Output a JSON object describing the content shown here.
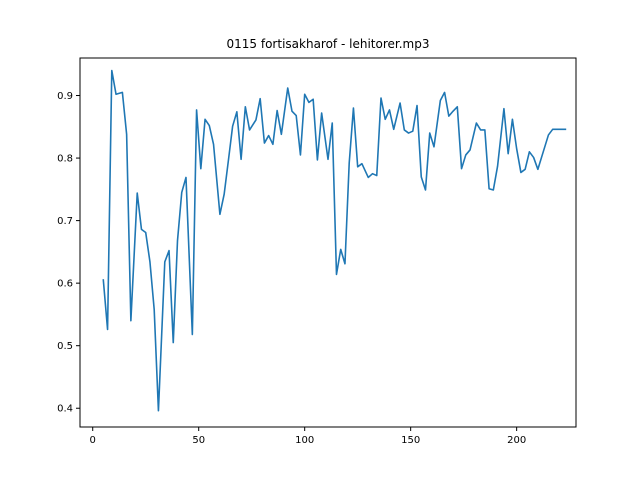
{
  "chart_data": {
    "type": "line",
    "title": "0115 fortisakharof - lehitorer.mp3",
    "xlabel": "",
    "ylabel": "",
    "xlim": [
      -6,
      228
    ],
    "ylim": [
      0.37,
      0.96
    ],
    "xticks": [
      0,
      50,
      100,
      150,
      200
    ],
    "yticks": [
      0.4,
      0.5,
      0.6,
      0.7,
      0.8,
      0.9
    ],
    "yticks_labels": [
      "0.4",
      "0.5",
      "0.6",
      "0.7",
      "0.8",
      "0.9"
    ],
    "grid": false,
    "legend": "none",
    "series": [
      {
        "color": "#1f77b4",
        "x": [
          5,
          7,
          9,
          11,
          14,
          16,
          18,
          21,
          23,
          25,
          27,
          29,
          31,
          34,
          36,
          38,
          40,
          42,
          44,
          47,
          49,
          51,
          53,
          55,
          57,
          60,
          62,
          64,
          66,
          68,
          70,
          72,
          74,
          77,
          79,
          81,
          83,
          85,
          87,
          89,
          92,
          94,
          96,
          98,
          100,
          102,
          104,
          106,
          108,
          111,
          113,
          115,
          117,
          119,
          121,
          123,
          125,
          127,
          130,
          132,
          134,
          136,
          138,
          140,
          142,
          145,
          147,
          149,
          151,
          153,
          155,
          157,
          159,
          161,
          164,
          166,
          168,
          170,
          172,
          174,
          176,
          178,
          181,
          183,
          185,
          187,
          189,
          191,
          194,
          196,
          198,
          200,
          202,
          204,
          206,
          208,
          210,
          212,
          215,
          217,
          219,
          221,
          223
        ],
        "y": [
          0.605,
          0.526,
          0.94,
          0.902,
          0.905,
          0.838,
          0.54,
          0.744,
          0.686,
          0.681,
          0.634,
          0.558,
          0.396,
          0.634,
          0.652,
          0.505,
          0.668,
          0.745,
          0.769,
          0.518,
          0.877,
          0.783,
          0.862,
          0.852,
          0.822,
          0.71,
          0.742,
          0.796,
          0.851,
          0.874,
          0.798,
          0.882,
          0.845,
          0.861,
          0.895,
          0.824,
          0.836,
          0.822,
          0.876,
          0.838,
          0.912,
          0.875,
          0.868,
          0.805,
          0.902,
          0.889,
          0.894,
          0.797,
          0.872,
          0.798,
          0.856,
          0.614,
          0.654,
          0.631,
          0.792,
          0.88,
          0.786,
          0.791,
          0.769,
          0.775,
          0.772,
          0.896,
          0.862,
          0.877,
          0.846,
          0.888,
          0.845,
          0.84,
          0.843,
          0.884,
          0.77,
          0.749,
          0.84,
          0.818,
          0.892,
          0.905,
          0.867,
          0.875,
          0.882,
          0.783,
          0.805,
          0.813,
          0.856,
          0.845,
          0.845,
          0.751,
          0.749,
          0.787,
          0.879,
          0.807,
          0.862,
          0.815,
          0.777,
          0.782,
          0.81,
          0.801,
          0.782,
          0.804,
          0.837,
          0.846,
          0.846,
          0.846,
          0.846
        ]
      }
    ]
  }
}
